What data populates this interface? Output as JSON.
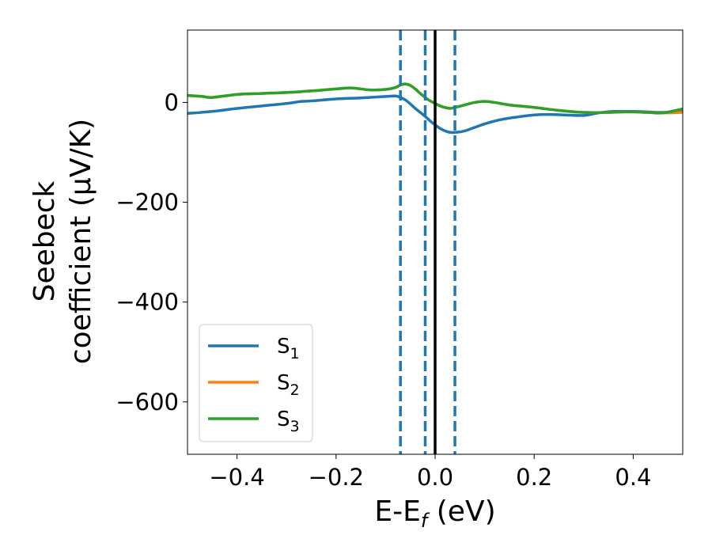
{
  "chart_data": {
    "type": "line",
    "title": "",
    "xlabel": "E-E",
    "xlabel_sub": "f",
    "xlabel_unit": " (eV)",
    "ylabel_line1": "Seebeck",
    "ylabel_line2": "coefficient  (μV/K)",
    "xlim": [
      -0.5,
      0.5
    ],
    "ylim": [
      -705,
      145
    ],
    "xticks": [
      -0.4,
      -0.2,
      0.0,
      0.2,
      0.4
    ],
    "xtick_labels": [
      "−0.4",
      "−0.2",
      "0.0",
      "0.2",
      "0.4"
    ],
    "yticks": [
      0,
      -200,
      -400,
      -600
    ],
    "ytick_labels": [
      "0",
      "−200",
      "−400",
      "−600"
    ],
    "grid": false,
    "legend_position": "lower-left",
    "series": [
      {
        "name": "S",
        "name_sub": "1",
        "color": "#1f77b4",
        "x": [
          -0.5,
          -0.45,
          -0.4,
          -0.35,
          -0.3,
          -0.27,
          -0.25,
          -0.2,
          -0.15,
          -0.1,
          -0.08,
          -0.07,
          -0.06,
          -0.05,
          -0.04,
          -0.03,
          -0.02,
          -0.01,
          0.0,
          0.01,
          0.02,
          0.03,
          0.04,
          0.05,
          0.06,
          0.08,
          0.1,
          0.13,
          0.16,
          0.2,
          0.23,
          0.26,
          0.3,
          0.33,
          0.36,
          0.4,
          0.43,
          0.46,
          0.5
        ],
        "y": [
          -22,
          -18,
          -12,
          -7,
          -2,
          2,
          3,
          7,
          9,
          12,
          13,
          10,
          5,
          -3,
          -12,
          -20,
          -28,
          -37,
          -45,
          -52,
          -57,
          -60,
          -60,
          -59,
          -57,
          -50,
          -43,
          -35,
          -30,
          -25,
          -24,
          -25,
          -26,
          -21,
          -18,
          -18,
          -19,
          -20,
          -18
        ]
      },
      {
        "name": "S",
        "name_sub": "2",
        "color": "#ff7f0e",
        "x": [
          -0.5,
          -0.47,
          -0.45,
          -0.4,
          -0.35,
          -0.3,
          -0.25,
          -0.2,
          -0.17,
          -0.13,
          -0.1,
          -0.08,
          -0.07,
          -0.06,
          -0.05,
          -0.04,
          -0.03,
          -0.02,
          -0.01,
          0.0,
          0.01,
          0.02,
          0.03,
          0.04,
          0.06,
          0.08,
          0.1,
          0.12,
          0.15,
          0.2,
          0.25,
          0.3,
          0.35,
          0.38,
          0.4,
          0.43,
          0.46,
          0.5
        ],
        "y": [
          14,
          12,
          10,
          16,
          18,
          20,
          23,
          27,
          29,
          25,
          26,
          30,
          35,
          37,
          34,
          27,
          18,
          10,
          3,
          -2,
          -7,
          -10,
          -12,
          -10,
          -5,
          0,
          2,
          0,
          -5,
          -10,
          -16,
          -20,
          -20,
          -19,
          -19,
          -20,
          -21,
          -20
        ]
      },
      {
        "name": "S",
        "name_sub": "3",
        "color": "#2ca02c",
        "x": [
          -0.5,
          -0.47,
          -0.45,
          -0.4,
          -0.35,
          -0.3,
          -0.25,
          -0.2,
          -0.17,
          -0.13,
          -0.1,
          -0.08,
          -0.07,
          -0.06,
          -0.05,
          -0.04,
          -0.03,
          -0.02,
          -0.01,
          0.0,
          0.01,
          0.02,
          0.03,
          0.04,
          0.06,
          0.08,
          0.1,
          0.12,
          0.15,
          0.2,
          0.25,
          0.3,
          0.35,
          0.38,
          0.4,
          0.43,
          0.46,
          0.5
        ],
        "y": [
          14,
          12,
          10,
          16,
          18,
          20,
          23,
          27,
          29,
          25,
          26,
          30,
          35,
          37,
          34,
          27,
          18,
          10,
          3,
          -2,
          -7,
          -10,
          -12,
          -10,
          -5,
          0,
          2,
          0,
          -5,
          -10,
          -16,
          -20,
          -20,
          -19,
          -19,
          -20,
          -21,
          -13
        ]
      }
    ],
    "vlines": [
      {
        "x": -0.07,
        "style": "dashed",
        "color": "#1f77b4"
      },
      {
        "x": -0.02,
        "style": "dashed",
        "color": "#1f77b4"
      },
      {
        "x": 0.0,
        "style": "solid",
        "color": "#000000"
      },
      {
        "x": 0.04,
        "style": "dashed",
        "color": "#1f77b4"
      }
    ]
  }
}
